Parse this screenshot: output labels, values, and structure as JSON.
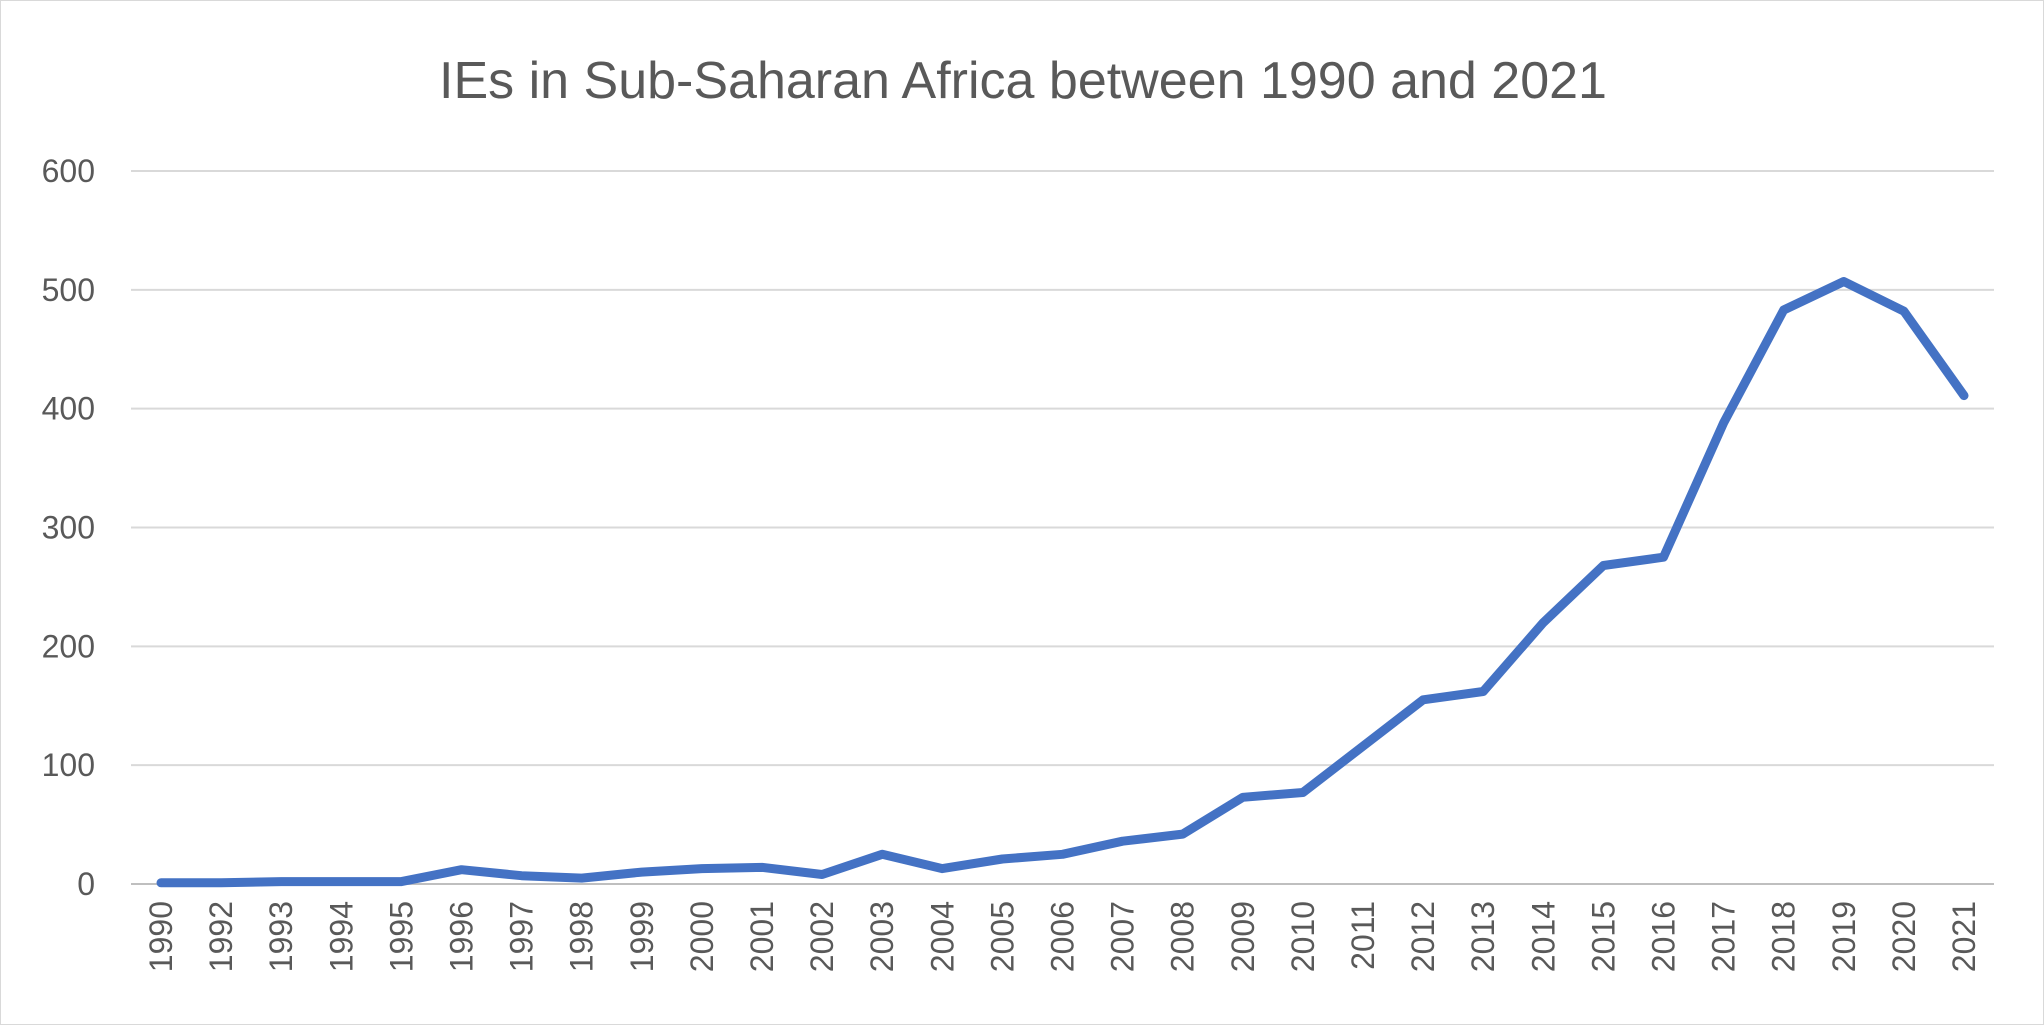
{
  "chart_data": {
    "type": "line",
    "title": "IEs in Sub-Saharan Africa between 1990 and 2021",
    "xlabel": "",
    "ylabel": "",
    "ylim": [
      0,
      600
    ],
    "y_ticks": [
      0,
      100,
      200,
      300,
      400,
      500,
      600
    ],
    "grid": true,
    "legend": "none",
    "categories": [
      "1990",
      "1992",
      "1993",
      "1994",
      "1995",
      "1996",
      "1997",
      "1998",
      "1999",
      "2000",
      "2001",
      "2002",
      "2003",
      "2004",
      "2005",
      "2006",
      "2007",
      "2008",
      "2009",
      "2010",
      "2011",
      "2012",
      "2013",
      "2014",
      "2015",
      "2016",
      "2017",
      "2018",
      "2019",
      "2020",
      "2021"
    ],
    "series": [
      {
        "color": "#4472c4",
        "values": [
          1,
          1,
          2,
          2,
          2,
          12,
          7,
          5,
          10,
          13,
          14,
          8,
          25,
          13,
          21,
          25,
          36,
          42,
          73,
          77,
          116,
          155,
          162,
          220,
          268,
          275,
          388,
          483,
          507,
          482,
          411
        ]
      }
    ]
  }
}
